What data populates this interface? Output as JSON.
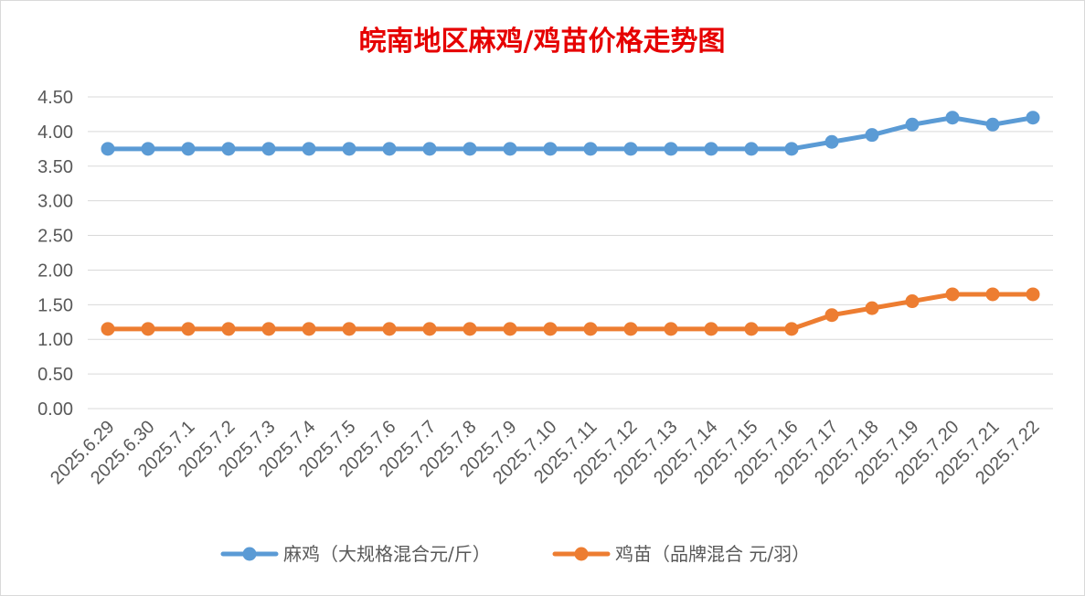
{
  "chart_data": {
    "type": "line",
    "title": "皖南地区麻鸡/鸡苗价格走势图",
    "categories": [
      "2025.6.29",
      "2025.6.30",
      "2025.7.1",
      "2025.7.2",
      "2025.7.3",
      "2025.7.4",
      "2025.7.5",
      "2025.7.6",
      "2025.7.7",
      "2025.7.8",
      "2025.7.9",
      "2025.7.10",
      "2025.7.11",
      "2025.7.12",
      "2025.7.13",
      "2025.7.14",
      "2025.7.15",
      "2025.7.16",
      "2025.7.17",
      "2025.7.18",
      "2025.7.19",
      "2025.7.20",
      "2025.7.21",
      "2025.7.22"
    ],
    "yticks": [
      "0.00",
      "0.50",
      "1.00",
      "1.50",
      "2.00",
      "2.50",
      "3.00",
      "3.50",
      "4.00",
      "4.50"
    ],
    "ylim": [
      0,
      4.5
    ],
    "grid": true,
    "legend_position": "bottom",
    "series": [
      {
        "name": "麻鸡（大规格混合元/斤）",
        "color": "#5b9bd5",
        "values": [
          3.75,
          3.75,
          3.75,
          3.75,
          3.75,
          3.75,
          3.75,
          3.75,
          3.75,
          3.75,
          3.75,
          3.75,
          3.75,
          3.75,
          3.75,
          3.75,
          3.75,
          3.75,
          3.85,
          3.95,
          4.1,
          4.2,
          4.1,
          4.2
        ]
      },
      {
        "name": "鸡苗（品牌混合 元/羽）",
        "color": "#ed7d31",
        "values": [
          1.15,
          1.15,
          1.15,
          1.15,
          1.15,
          1.15,
          1.15,
          1.15,
          1.15,
          1.15,
          1.15,
          1.15,
          1.15,
          1.15,
          1.15,
          1.15,
          1.15,
          1.15,
          1.35,
          1.45,
          1.55,
          1.65,
          1.65,
          1.65
        ]
      }
    ]
  }
}
